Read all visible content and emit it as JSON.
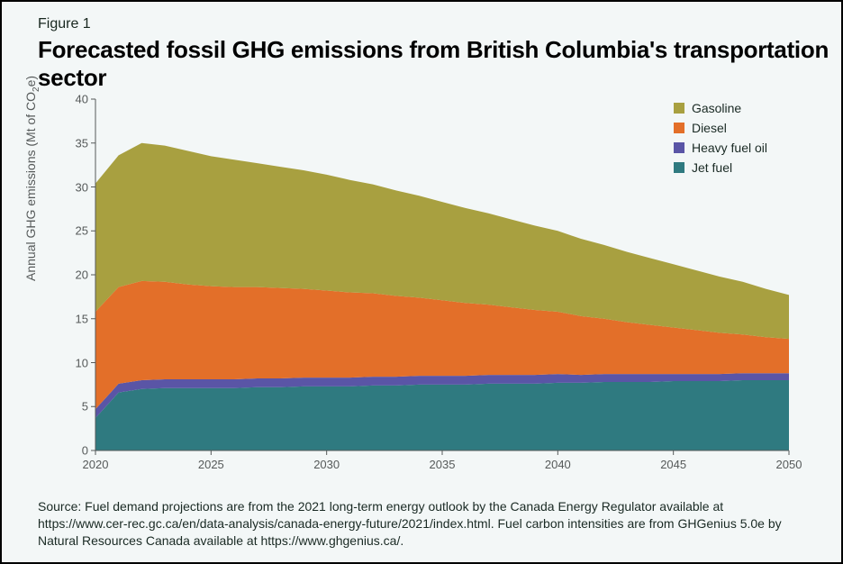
{
  "figure_label": "Figure 1",
  "title": "Forecasted fossil GHG emissions from British Columbia's transportation sector",
  "y_axis_label_html": "Annual GHG emissions (Mt of CO<sub>2</sub>e)",
  "source_text": "Source: Fuel demand projections are from the 2021 long-term energy outlook by the Canada Energy Regulator available at https://www.cer-rec.gc.ca/en/data-analysis/canada-energy-future/2021/index.html. Fuel carbon intensities are from GHGenius 5.0e by Natural Resources Canada available at https://www.ghgenius.ca/.",
  "chart": {
    "type": "stacked-area",
    "background_color": "#f3f7f7",
    "axis_color": "#565a5a",
    "tick_color": "#565a5a",
    "tick_font_size": 13,
    "x": {
      "min": 2020,
      "max": 2050,
      "ticks": [
        2020,
        2025,
        2030,
        2035,
        2040,
        2045,
        2050
      ]
    },
    "y": {
      "min": 0,
      "max": 40,
      "ticks": [
        0,
        5,
        10,
        15,
        20,
        25,
        30,
        35,
        40
      ]
    },
    "years": [
      2020,
      2021,
      2022,
      2023,
      2024,
      2025,
      2026,
      2027,
      2028,
      2029,
      2030,
      2031,
      2032,
      2033,
      2034,
      2035,
      2036,
      2037,
      2038,
      2039,
      2040,
      2041,
      2042,
      2043,
      2044,
      2045,
      2046,
      2047,
      2048,
      2049,
      2050
    ],
    "series": [
      {
        "name": "Jet fuel",
        "color": "#2f7a80",
        "values": [
          3.7,
          6.6,
          7.0,
          7.1,
          7.1,
          7.1,
          7.1,
          7.2,
          7.2,
          7.3,
          7.3,
          7.3,
          7.4,
          7.4,
          7.5,
          7.5,
          7.5,
          7.6,
          7.6,
          7.6,
          7.7,
          7.7,
          7.8,
          7.8,
          7.8,
          7.9,
          7.9,
          7.9,
          8.0,
          8.0,
          8.0
        ]
      },
      {
        "name": "Heavy fuel oil",
        "color": "#5a55a6",
        "values": [
          1.0,
          1.0,
          1.0,
          1.0,
          1.0,
          1.0,
          1.0,
          1.0,
          1.0,
          1.0,
          1.0,
          1.0,
          1.0,
          1.0,
          1.0,
          1.0,
          1.0,
          1.0,
          1.0,
          1.0,
          1.0,
          0.9,
          0.9,
          0.9,
          0.9,
          0.8,
          0.8,
          0.8,
          0.8,
          0.8,
          0.8
        ]
      },
      {
        "name": "Diesel",
        "color": "#e36f29",
        "values": [
          11.1,
          11.0,
          11.3,
          11.1,
          10.8,
          10.6,
          10.5,
          10.4,
          10.3,
          10.1,
          9.9,
          9.7,
          9.5,
          9.2,
          8.9,
          8.6,
          8.3,
          8.0,
          7.7,
          7.4,
          7.1,
          6.7,
          6.3,
          5.9,
          5.6,
          5.3,
          5.0,
          4.7,
          4.4,
          4.1,
          3.9
        ]
      },
      {
        "name": "Gasoline",
        "color": "#a8a040",
        "values": [
          14.6,
          15.0,
          15.7,
          15.5,
          15.2,
          14.8,
          14.5,
          14.1,
          13.8,
          13.5,
          13.2,
          12.8,
          12.4,
          12.0,
          11.6,
          11.2,
          10.8,
          10.4,
          10.0,
          9.6,
          9.2,
          8.8,
          8.4,
          8.0,
          7.6,
          7.2,
          6.8,
          6.4,
          6.0,
          5.5,
          5.0
        ]
      }
    ],
    "legend_order": [
      "Gasoline",
      "Diesel",
      "Heavy fuel oil",
      "Jet fuel"
    ]
  }
}
